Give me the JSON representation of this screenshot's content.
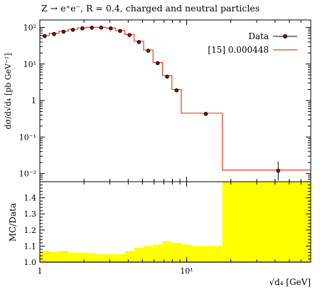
{
  "chart_data": [
    {
      "type": "line",
      "title": "Z → e⁺e⁻, R = 0.4, charged and neutral particles",
      "ylabel": "dσ/d√d₄ [pb GeV⁻¹]",
      "xlabel": "",
      "xscale": "log",
      "yscale": "log",
      "xlim": [
        1,
        70
      ],
      "ylim": [
        0.006,
        160
      ],
      "grid": false,
      "legend_position": "top-right",
      "x_ticks": [
        "1",
        "10¹"
      ],
      "y_ticks": [
        "10²",
        "10¹",
        "1",
        "10⁻¹",
        "10⁻²"
      ],
      "series": [
        {
          "name": "Data",
          "style": "points",
          "color": "#000000",
          "marker_fill": "#7a1010",
          "points": [
            {
              "x": 1.08,
              "y": 58,
              "err": 0
            },
            {
              "x": 1.25,
              "y": 66,
              "err": 0
            },
            {
              "x": 1.45,
              "y": 76,
              "err": 0
            },
            {
              "x": 1.68,
              "y": 86,
              "err": 0
            },
            {
              "x": 1.95,
              "y": 94,
              "err": 0
            },
            {
              "x": 2.26,
              "y": 98,
              "err": 0
            },
            {
              "x": 2.62,
              "y": 99,
              "err": 0
            },
            {
              "x": 3.04,
              "y": 94,
              "err": 0
            },
            {
              "x": 3.52,
              "y": 80,
              "err": 0
            },
            {
              "x": 4.08,
              "y": 62,
              "err": 0
            },
            {
              "x": 4.73,
              "y": 40,
              "err": 0
            },
            {
              "x": 5.48,
              "y": 23,
              "err": 0
            },
            {
              "x": 6.35,
              "y": 10.5,
              "err": 0
            },
            {
              "x": 7.36,
              "y": 4.5,
              "err": 0
            },
            {
              "x": 8.53,
              "y": 1.9,
              "err": 0
            },
            {
              "x": 13.5,
              "y": 0.43,
              "err": 0
            },
            {
              "x": 42.0,
              "y": 0.012,
              "err_low": 0.0055,
              "err_high": 0.0095
            }
          ]
        },
        {
          "name": "[15] 0.000448",
          "style": "step",
          "color": "#e8401c",
          "edges": [
            1.0,
            1.16,
            1.35,
            1.56,
            1.81,
            2.1,
            2.43,
            2.82,
            3.27,
            3.79,
            4.39,
            5.09,
            5.9,
            6.84,
            7.93,
            9.19,
            10.66,
            17.5,
            70.0
          ],
          "values": [
            60,
            69,
            79,
            89,
            97,
            101,
            101,
            96,
            82,
            64,
            42,
            24,
            11,
            4.8,
            2.0,
            0.45,
            0.45,
            0.0125
          ]
        }
      ]
    },
    {
      "type": "area",
      "ylabel": "MC/Data",
      "xlabel": "√d₄ [GeV]",
      "xscale": "log",
      "xlim": [
        1,
        70
      ],
      "ylim": [
        1.0,
        1.5
      ],
      "y_ticks": [
        "1.0",
        "1.1",
        "1.2",
        "1.3",
        "1.4"
      ],
      "x_ticks": [
        "1",
        "10¹"
      ],
      "reference_line": 1.0,
      "band_color": "#ffff00",
      "band": {
        "edges": [
          1.0,
          1.16,
          1.35,
          1.56,
          1.81,
          2.1,
          2.43,
          2.82,
          3.27,
          3.79,
          4.39,
          5.09,
          5.9,
          6.84,
          7.93,
          9.19,
          10.66,
          17.5,
          70.0
        ],
        "upper": [
          1.07,
          1.065,
          1.07,
          1.06,
          1.06,
          1.055,
          1.05,
          1.05,
          1.05,
          1.07,
          1.09,
          1.1,
          1.11,
          1.13,
          1.12,
          1.11,
          1.1,
          1.5
        ]
      }
    }
  ]
}
